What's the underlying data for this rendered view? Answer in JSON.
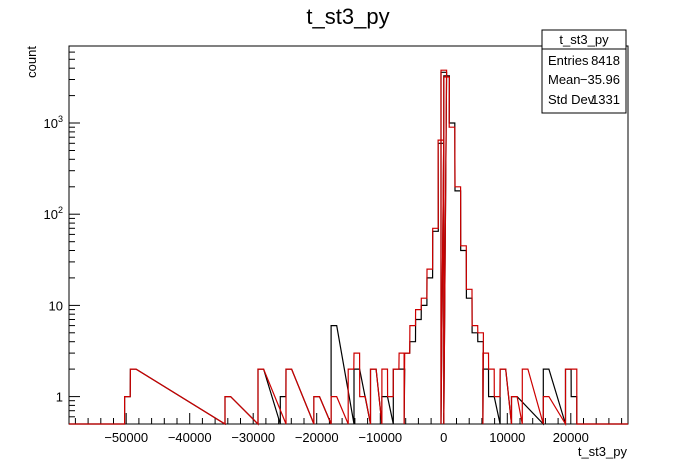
{
  "chart_data": {
    "type": "histogram",
    "title": "t_st3_py",
    "xlabel": "t_st3_py",
    "ylabel": "count",
    "xlim": [
      -59000,
      29000
    ],
    "ylim": [
      0.5,
      7000
    ],
    "yscale": "log",
    "x_ticks": [
      -50000,
      -40000,
      -30000,
      -20000,
      -10000,
      0,
      10000,
      20000
    ],
    "x_tick_labels": [
      "−50000",
      "−40000",
      "−30000",
      "−20000",
      "−10000",
      "0",
      "10000",
      "20000"
    ],
    "y_ticks": [
      1,
      10,
      100,
      1000
    ],
    "y_tick_labels": [
      "1",
      "10",
      "10^2",
      "10^3"
    ],
    "bin_width": 880,
    "series": [
      {
        "color": "#000000",
        "bins": [
          {
            "x": -49800,
            "count": 1
          },
          {
            "x": -48900,
            "count": 2
          },
          {
            "x": -34000,
            "count": 1
          },
          {
            "x": -28800,
            "count": 2
          },
          {
            "x": -25300,
            "count": 1
          },
          {
            "x": -24400,
            "count": 2
          },
          {
            "x": -20000,
            "count": 1
          },
          {
            "x": -17300,
            "count": 6
          },
          {
            "x": -13700,
            "count": 2
          },
          {
            "x": -11100,
            "count": 2
          },
          {
            "x": -9300,
            "count": 1
          },
          {
            "x": -7500,
            "count": 2
          },
          {
            "x": -6600,
            "count": 2
          },
          {
            "x": -5800,
            "count": 3
          },
          {
            "x": -4900,
            "count": 4
          },
          {
            "x": -4000,
            "count": 7
          },
          {
            "x": -3100,
            "count": 10
          },
          {
            "x": -2200,
            "count": 20
          },
          {
            "x": -1300,
            "count": 65
          },
          {
            "x": -450,
            "count": 600
          },
          {
            "x": 0,
            "count": 3600
          },
          {
            "x": 450,
            "count": 3300
          },
          {
            "x": 1300,
            "count": 1000
          },
          {
            "x": 2200,
            "count": 180
          },
          {
            "x": 3100,
            "count": 40
          },
          {
            "x": 4000,
            "count": 12
          },
          {
            "x": 4900,
            "count": 5
          },
          {
            "x": 5800,
            "count": 4
          },
          {
            "x": 6600,
            "count": 2
          },
          {
            "x": 7500,
            "count": 1
          },
          {
            "x": 9300,
            "count": 2
          },
          {
            "x": 11100,
            "count": 1
          },
          {
            "x": 16100,
            "count": 2
          },
          {
            "x": 19600,
            "count": 2
          },
          {
            "x": 20500,
            "count": 1
          }
        ]
      },
      {
        "color": "#cc0000",
        "bins": [
          {
            "x": -49800,
            "count": 1
          },
          {
            "x": -48900,
            "count": 2
          },
          {
            "x": -34000,
            "count": 1
          },
          {
            "x": -28800,
            "count": 2
          },
          {
            "x": -24400,
            "count": 2
          },
          {
            "x": -20000,
            "count": 1
          },
          {
            "x": -17300,
            "count": 1
          },
          {
            "x": -14600,
            "count": 2
          },
          {
            "x": -13700,
            "count": 3
          },
          {
            "x": -12800,
            "count": 1
          },
          {
            "x": -11100,
            "count": 2
          },
          {
            "x": -9300,
            "count": 2
          },
          {
            "x": -8400,
            "count": 1
          },
          {
            "x": -7500,
            "count": 2
          },
          {
            "x": -6600,
            "count": 3
          },
          {
            "x": -5800,
            "count": 3
          },
          {
            "x": -4900,
            "count": 6
          },
          {
            "x": -4000,
            "count": 9
          },
          {
            "x": -3100,
            "count": 12
          },
          {
            "x": -2200,
            "count": 25
          },
          {
            "x": -1300,
            "count": 70
          },
          {
            "x": -450,
            "count": 650
          },
          {
            "x": 0,
            "count": 3800
          },
          {
            "x": 450,
            "count": 3200
          },
          {
            "x": 1300,
            "count": 900
          },
          {
            "x": 2200,
            "count": 200
          },
          {
            "x": 3100,
            "count": 45
          },
          {
            "x": 4000,
            "count": 15
          },
          {
            "x": 4900,
            "count": 6
          },
          {
            "x": 5800,
            "count": 5
          },
          {
            "x": 6600,
            "count": 3
          },
          {
            "x": 7500,
            "count": 2
          },
          {
            "x": 8400,
            "count": 1
          },
          {
            "x": 9300,
            "count": 2
          },
          {
            "x": 11100,
            "count": 1
          },
          {
            "x": 12800,
            "count": 2
          },
          {
            "x": 16100,
            "count": 1
          },
          {
            "x": 19600,
            "count": 2
          },
          {
            "x": 20500,
            "count": 2
          }
        ]
      }
    ],
    "stats_box": {
      "title": "t_st3_py",
      "rows": [
        {
          "label": "Entries",
          "value": "8418"
        },
        {
          "label": "Mean",
          "value": "−35.96"
        },
        {
          "label": "Std Dev",
          "value": "1331"
        }
      ]
    }
  }
}
